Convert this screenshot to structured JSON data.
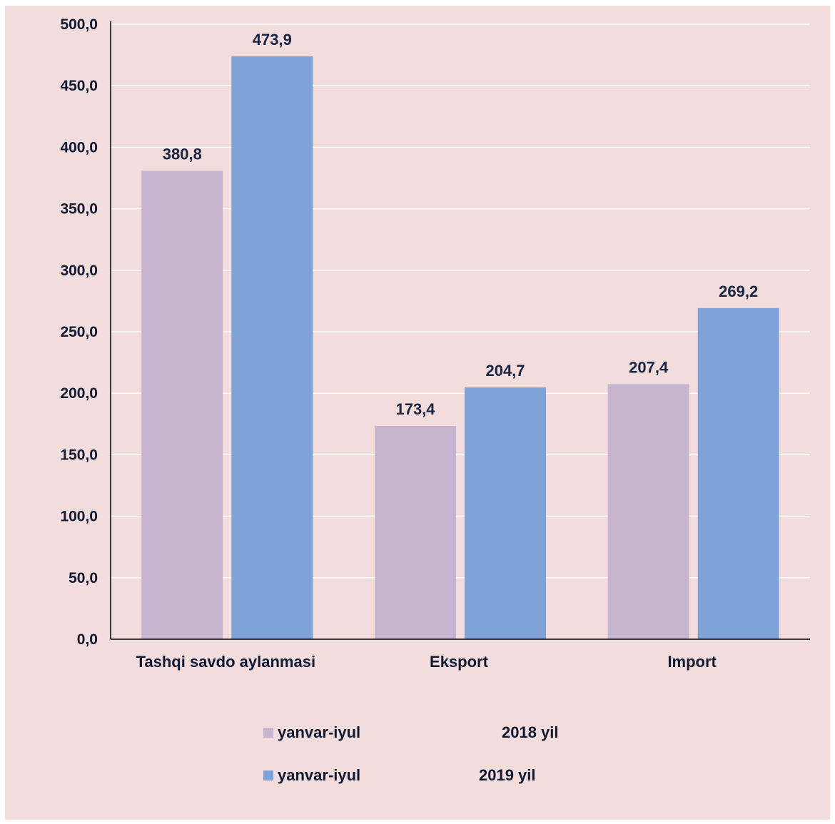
{
  "chart_data": {
    "type": "bar",
    "categories": [
      "Tashqi savdo aylanmasi",
      "Eksport",
      "Import"
    ],
    "series": [
      {
        "name": "yanvar-iyul 2018 yil",
        "name_parts": [
          "yanvar-iyul",
          "2018 yil"
        ],
        "values": [
          380.8,
          173.4,
          207.4
        ],
        "labels": [
          "380,8",
          "173,4",
          "207,4"
        ],
        "color": "#c7b4cf"
      },
      {
        "name": "yanvar-iyul 2019 yil",
        "name_parts": [
          "yanvar-iyul",
          "2019 yil"
        ],
        "values": [
          473.9,
          204.7,
          269.2
        ],
        "labels": [
          "473,9",
          "204,7",
          "269,2"
        ],
        "color": "#7fa3d7"
      }
    ],
    "ylim": [
      0,
      500
    ],
    "yticks": [
      0,
      50,
      100,
      150,
      200,
      250,
      300,
      350,
      400,
      450,
      500
    ],
    "ytick_labels": [
      "0,0",
      "50,0",
      "100,0",
      "150,0",
      "200,0",
      "250,0",
      "300,0",
      "350,0",
      "400,0",
      "450,0",
      "500,0"
    ],
    "grid": true,
    "legend": "bottom",
    "background": "#f2dcdc",
    "gridline_color": "#ffffff",
    "axis_color": "#000000"
  }
}
